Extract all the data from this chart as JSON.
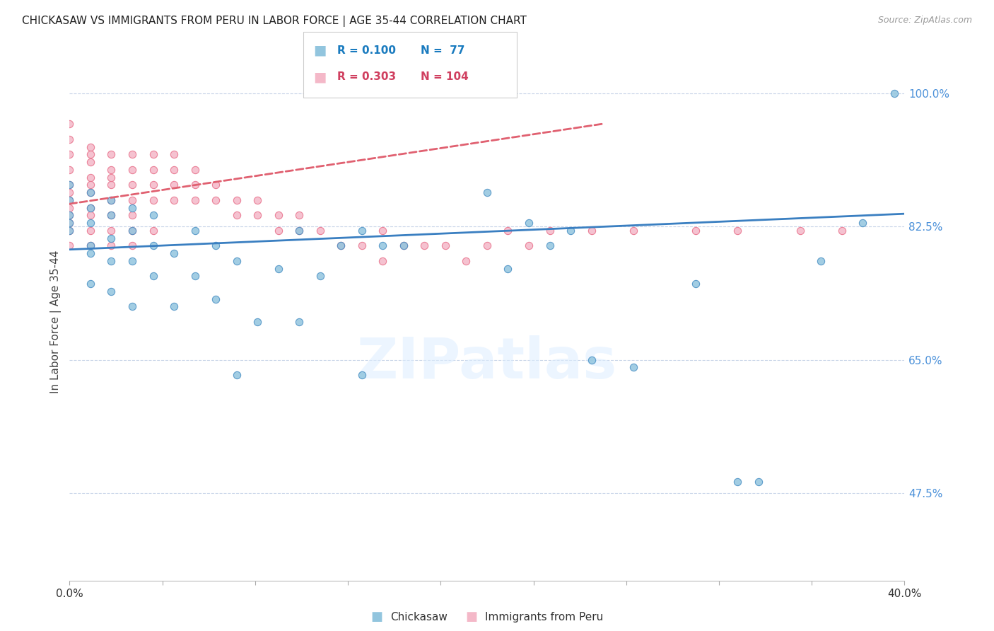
{
  "title": "CHICKASAW VS IMMIGRANTS FROM PERU IN LABOR FORCE | AGE 35-44 CORRELATION CHART",
  "source": "Source: ZipAtlas.com",
  "ylabel": "In Labor Force | Age 35-44",
  "xlim": [
    0.0,
    0.4
  ],
  "ylim": [
    0.36,
    1.04
  ],
  "right_ytick_labels": [
    "100.0%",
    "82.5%",
    "65.0%",
    "47.5%"
  ],
  "right_ytick_positions": [
    1.0,
    0.825,
    0.65,
    0.475
  ],
  "watermark": "ZIPatlas",
  "legend_blue_R": "R = 0.100",
  "legend_blue_N": "N =  77",
  "legend_pink_R": "R = 0.303",
  "legend_pink_N": "N = 104",
  "blue_color": "#92c5de",
  "pink_color": "#f4b8c8",
  "blue_edge_color": "#4a90c4",
  "pink_edge_color": "#e8708a",
  "blue_line_color": "#3a7fc1",
  "pink_line_color": "#e06070",
  "legend_R_blue_color": "#1a7bbf",
  "legend_R_pink_color": "#d04060",
  "right_axis_color": "#4a90d9",
  "grid_color": "#c8d4e8",
  "background_color": "#ffffff",
  "blue_scatter_x": [
    0.0,
    0.0,
    0.0,
    0.0,
    0.0,
    0.01,
    0.01,
    0.01,
    0.01,
    0.01,
    0.01,
    0.02,
    0.02,
    0.02,
    0.02,
    0.02,
    0.03,
    0.03,
    0.03,
    0.03,
    0.04,
    0.04,
    0.04,
    0.05,
    0.05,
    0.06,
    0.06,
    0.07,
    0.07,
    0.08,
    0.08,
    0.09,
    0.1,
    0.11,
    0.11,
    0.12,
    0.13,
    0.14,
    0.14,
    0.15,
    0.16,
    0.2,
    0.21,
    0.22,
    0.23,
    0.24,
    0.25,
    0.27,
    0.3,
    0.32,
    0.33,
    0.36,
    0.38,
    0.395
  ],
  "blue_scatter_y": [
    0.82,
    0.84,
    0.86,
    0.88,
    0.83,
    0.8,
    0.83,
    0.85,
    0.87,
    0.75,
    0.79,
    0.81,
    0.84,
    0.86,
    0.78,
    0.74,
    0.82,
    0.85,
    0.78,
    0.72,
    0.8,
    0.84,
    0.76,
    0.79,
    0.72,
    0.82,
    0.76,
    0.8,
    0.73,
    0.78,
    0.63,
    0.7,
    0.77,
    0.82,
    0.7,
    0.76,
    0.8,
    0.82,
    0.63,
    0.8,
    0.8,
    0.87,
    0.77,
    0.83,
    0.8,
    0.82,
    0.65,
    0.64,
    0.75,
    0.49,
    0.49,
    0.78,
    0.83,
    1.0
  ],
  "pink_scatter_x": [
    0.0,
    0.0,
    0.0,
    0.0,
    0.0,
    0.0,
    0.0,
    0.0,
    0.0,
    0.0,
    0.0,
    0.0,
    0.01,
    0.01,
    0.01,
    0.01,
    0.01,
    0.01,
    0.01,
    0.01,
    0.01,
    0.01,
    0.02,
    0.02,
    0.02,
    0.02,
    0.02,
    0.02,
    0.02,
    0.02,
    0.03,
    0.03,
    0.03,
    0.03,
    0.03,
    0.03,
    0.03,
    0.04,
    0.04,
    0.04,
    0.04,
    0.04,
    0.05,
    0.05,
    0.05,
    0.05,
    0.06,
    0.06,
    0.06,
    0.07,
    0.07,
    0.08,
    0.08,
    0.09,
    0.09,
    0.1,
    0.1,
    0.11,
    0.11,
    0.12,
    0.13,
    0.14,
    0.15,
    0.15,
    0.16,
    0.17,
    0.18,
    0.19,
    0.2,
    0.21,
    0.22,
    0.23,
    0.25,
    0.27,
    0.3,
    0.32,
    0.35,
    0.37
  ],
  "pink_scatter_y": [
    0.96,
    0.94,
    0.92,
    0.9,
    0.88,
    0.86,
    0.84,
    0.82,
    0.8,
    0.87,
    0.85,
    0.83,
    0.93,
    0.91,
    0.89,
    0.87,
    0.85,
    0.84,
    0.82,
    0.8,
    0.92,
    0.88,
    0.92,
    0.9,
    0.88,
    0.86,
    0.84,
    0.82,
    0.8,
    0.89,
    0.92,
    0.9,
    0.88,
    0.86,
    0.84,
    0.82,
    0.8,
    0.92,
    0.9,
    0.88,
    0.86,
    0.82,
    0.92,
    0.9,
    0.88,
    0.86,
    0.9,
    0.88,
    0.86,
    0.88,
    0.86,
    0.86,
    0.84,
    0.86,
    0.84,
    0.84,
    0.82,
    0.84,
    0.82,
    0.82,
    0.8,
    0.8,
    0.82,
    0.78,
    0.8,
    0.8,
    0.8,
    0.78,
    0.8,
    0.82,
    0.8,
    0.82,
    0.82,
    0.82,
    0.82,
    0.82,
    0.82,
    0.82
  ]
}
